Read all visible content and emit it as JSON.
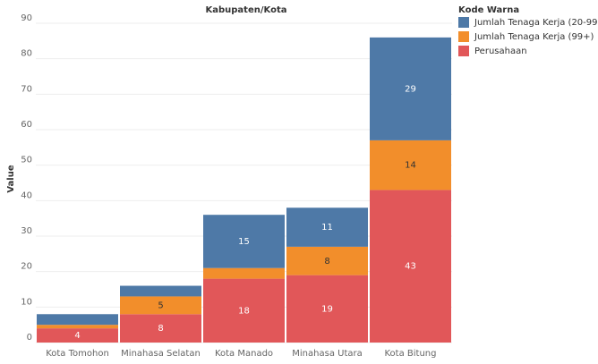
{
  "chart_data": {
    "type": "bar",
    "stacked": true,
    "title": "Kabupaten/Kota",
    "y_label": "Value",
    "categories": [
      "Kota Tomohon",
      "Minahasa Selatan",
      "Kota Manado",
      "Minahasa Utara",
      "Kota Bitung"
    ],
    "legend_title": "Kode Warna",
    "legend": "right",
    "grid": true,
    "series": [
      {
        "name": "Jumlah Tenaga Kerja (20-99)",
        "color": "#4e79a7",
        "values": [
          3,
          3,
          15,
          11,
          29
        ]
      },
      {
        "name": "Jumlah Tenaga Kerja (99+)",
        "color": "#f28e2b",
        "values": [
          1,
          5,
          3,
          8,
          14
        ]
      },
      {
        "name": "Perusahaan",
        "color": "#e15759",
        "values": [
          4,
          8,
          18,
          19,
          43
        ]
      }
    ],
    "ylim": [
      0,
      90
    ],
    "yticks": [
      0,
      10,
      20,
      30,
      40,
      50,
      60,
      70,
      80,
      90
    ]
  }
}
